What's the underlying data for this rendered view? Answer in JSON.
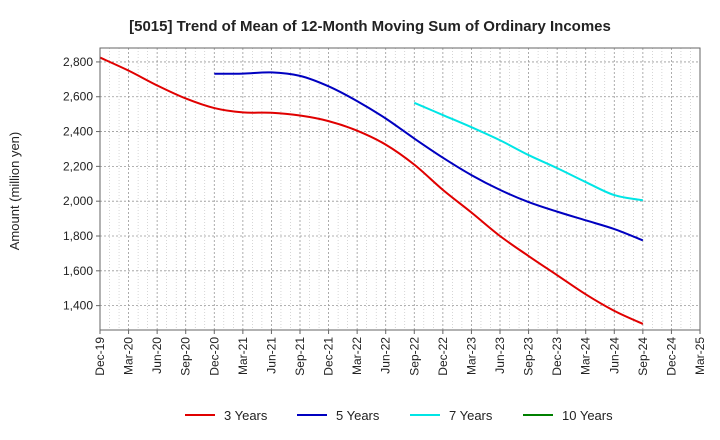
{
  "chart_data": {
    "type": "line",
    "title": "[5015]  Trend of Mean of 12-Month Moving Sum of Ordinary Incomes",
    "xlabel": "",
    "ylabel": "Amount (million yen)",
    "ylim": [
      1260,
      2880
    ],
    "yticks": [
      1400,
      1600,
      1800,
      2000,
      2200,
      2400,
      2600,
      2800
    ],
    "ytick_labels": [
      "1,400",
      "1,600",
      "1,800",
      "2,000",
      "2,200",
      "2,400",
      "2,600",
      "2,800"
    ],
    "categories": [
      "Dec-19",
      "Mar-20",
      "Jun-20",
      "Sep-20",
      "Dec-20",
      "Mar-21",
      "Jun-21",
      "Sep-21",
      "Dec-21",
      "Mar-22",
      "Jun-22",
      "Sep-22",
      "Dec-22",
      "Mar-23",
      "Jun-23",
      "Sep-23",
      "Dec-23",
      "Mar-24",
      "Jun-24",
      "Sep-24",
      "Dec-24",
      "Mar-25"
    ],
    "grid": true,
    "legend_position": "bottom",
    "series": [
      {
        "name": "3 Years",
        "color": "#e00000",
        "values": [
          2825,
          2750,
          2665,
          2590,
          2535,
          2510,
          2508,
          2492,
          2460,
          2405,
          2325,
          2210,
          2065,
          1935,
          1800,
          1685,
          1575,
          1465,
          1370,
          1295,
          null,
          null
        ]
      },
      {
        "name": "5 Years",
        "color": "#0000c0",
        "values": [
          null,
          null,
          null,
          null,
          2732,
          2733,
          2740,
          2720,
          2660,
          2575,
          2475,
          2360,
          2250,
          2150,
          2065,
          1995,
          1940,
          1890,
          1840,
          1775,
          null,
          null
        ]
      },
      {
        "name": "7 Years",
        "color": "#00e5e5",
        "values": [
          null,
          null,
          null,
          null,
          null,
          null,
          null,
          null,
          null,
          null,
          null,
          2565,
          2495,
          2425,
          2350,
          2265,
          2190,
          2110,
          2035,
          2005,
          null,
          null
        ]
      },
      {
        "name": "10 Years",
        "color": "#008000",
        "values": [
          null,
          null,
          null,
          null,
          null,
          null,
          null,
          null,
          null,
          null,
          null,
          null,
          null,
          null,
          null,
          null,
          null,
          null,
          null,
          null,
          null,
          null
        ]
      }
    ]
  }
}
